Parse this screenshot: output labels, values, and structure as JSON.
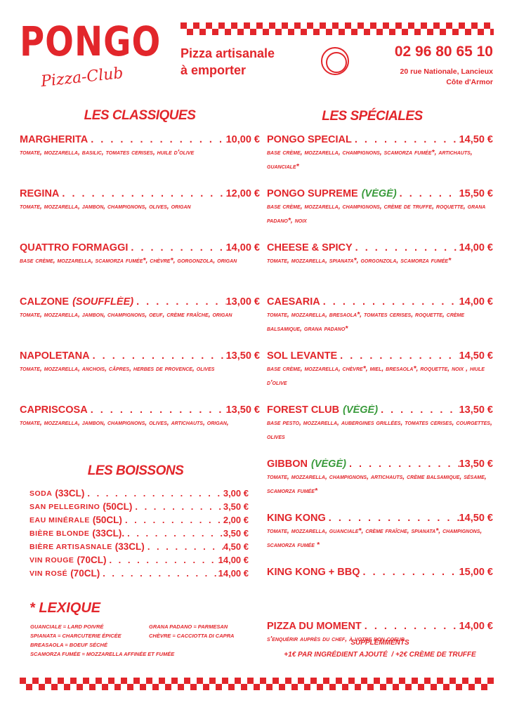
{
  "brand": {
    "name": "PONGO",
    "sub": "Pizza-Club",
    "tagline1": "Pizza artisanale",
    "tagline2": "à emporter",
    "phone": "02 96 80 65 10",
    "address1": "20 rue Nationale, Lancieux",
    "address2": "Côte d'Armor"
  },
  "colors": {
    "red": "#e2262b",
    "green": "#3a9b3c"
  },
  "classiques": {
    "title": "LES CLASSIQUES",
    "items": [
      {
        "name": "MARGHERITA",
        "price": "10,00 €",
        "desc": "TOMATE, MOZZARELLA, BASILIC, TOMATES CERISES, HUILE D'OLIVE"
      },
      {
        "name": "REGINA",
        "price": "12,00 €",
        "desc": "TOMATE, MOZZARELLA, JAMBON, CHAMPIGNONS, OLIVES, ORIGAN"
      },
      {
        "name": "QUATTRO FORMAGGI",
        "price": "14,00 €",
        "desc": "BASE CRÈME, MOZZARELLA, SCAMORZA FUMÉE*, CHÈVRE*, GORGONZOLA, ORIGAN"
      },
      {
        "name": "CALZONE",
        "tag": "(SOUFFLÉE)",
        "price": "13,00 €",
        "desc": "TOMATE, MOZZARELLA, JAMBON, CHAMPIGNONS, OEUF, CRÈME FRAÎCHE, ORIGAN"
      },
      {
        "name": "NAPOLETANA",
        "price": "13,50 €",
        "desc": "TOMATE, MOZZARELLA, ANCHOIS, CÂPRES, HERBES DE PROVENCE, OLIVES"
      },
      {
        "name": "CAPRISCOSA",
        "price": "13,50 €",
        "desc": "TOMATE, MOZZARELLA, JAMBON, CHAMPIGNONS, OLIVES, ARTICHAUTS, ORIGAN,"
      }
    ]
  },
  "speciales": {
    "title": "LES SPÉCIALES",
    "items": [
      {
        "name": "PONGO SPECIAL",
        "price": "14,50 €",
        "desc": "BASE CRÈME, MOZZARELLA, CHAMPIGNONS, SCAMORZA FUMÉE*, ARTICHAUTS, GUANCIALE*"
      },
      {
        "name": "PONGO SUPREME",
        "veg": "(VÉGÉ)",
        "price": "15,50 €",
        "desc": "BASE CRÈME, MOZZARELLA, CHAMPIGNONS, CRÈME DE TRUFFE, ROQUETTE, GRANA PADANO*, NOIX"
      },
      {
        "name": "CHEESE & SPICY",
        "price": "14,00 €",
        "desc": "TOMATE, MOZZARELLA, SPIANATA*, GORGONZOLA, SCAMORZA FUMÉE*"
      },
      {
        "name": "CAESARIA",
        "price": "14,00 €",
        "desc": "TOMATE, MOZZARELLA, BRESAOLA*, TOMATES CERISES, ROQUETTE, CRÈME BALSAMIQUE, GRANA PADANO*"
      },
      {
        "name": "SOL LEVANTE",
        "price": "14,50 €",
        "desc": "BASE CRÈME, MOZZARELLA, CHÈVRE*, MIEL, BRESAOLA*, ROQUETTE, NOIX , HIULE D'OLIVE"
      },
      {
        "name": "FOREST CLUB",
        "veg": "(VÉGÉ)",
        "price": "13,50 €",
        "desc": "BASE PESTO, MOZZARELLA, AUBERGINES GRILLÉES, TOMATES CERISES, COURGETTES, OLIVES"
      },
      {
        "name": "GIBBON",
        "veg": "(VÉGÉ)",
        "price": "13,50 €",
        "desc": "TOMATE, MOZZARELLA, CHAMPIGNONS, ARTICHAUTS, CRÈME BALSAMIQUE, SÉSAME, SCAMORZA FUMÉE*"
      },
      {
        "name": "KING KONG",
        "price": "14,50 €",
        "desc": "TOMATE, MOZZARELLA, GUANCIALE*, CRÈME FRAÎCHE, SPIANATA*, CHAMPIGNONS, SCAMORZA FUMÉE *"
      },
      {
        "name": "KING KONG + BBQ",
        "price": "15,00 €",
        "desc": ""
      },
      {
        "name": "PIZZA DU MOMENT",
        "price": "14,00 €",
        "desc": "S'ENQUÉRIR AUPRÈS DU CHEF, À VOTRE BON COEUR"
      }
    ]
  },
  "boissons": {
    "title": "LES BOISSONS",
    "items": [
      {
        "name": "SODA",
        "vol": "(33CL)",
        "price": "3,00 €"
      },
      {
        "name": "SAN PELLEGRINO",
        "vol": "(50CL)",
        "price": "3,50 €"
      },
      {
        "name": "EAU MINÉRALE",
        "vol": "(50CL)",
        "price": "2,00 €"
      },
      {
        "name": "BIÈRE BLONDE",
        "vol": "(33CL).",
        "price": "3,50 €"
      },
      {
        "name": "BIÈRE ARTISASNALE",
        "vol": "(33CL)",
        "price": "4,50 €"
      },
      {
        "name": "VIN ROUGE",
        "vol": "(70CL)",
        "price": "14,00 €"
      },
      {
        "name": "VIN ROSÉ",
        "vol": "(70CL)",
        "price": "14,00 €"
      }
    ]
  },
  "lexique": {
    "title": "* LEXIQUE",
    "col1": [
      "GUANCIALE = LARD POIVRÉ",
      "SPIANATA = CHARCUTERIE ÉPICÉE",
      "BREASAOLA = BOEUF SÉCHÉ",
      "SCAMORZA FUMÉE = MOZZARELLA AFFINÉE ET FUMÉE"
    ],
    "col2": [
      "GRANA PADANO = PARMESAN",
      "CHÈVRE = CACCIOTTA DI CAPRA"
    ]
  },
  "supplements": {
    "title": "SUPPLÉMMENTS",
    "line": "+1€ PAR INGRÉDIENT AJOUTÉ  / +2€ CRÈME DE TRUFFE"
  }
}
